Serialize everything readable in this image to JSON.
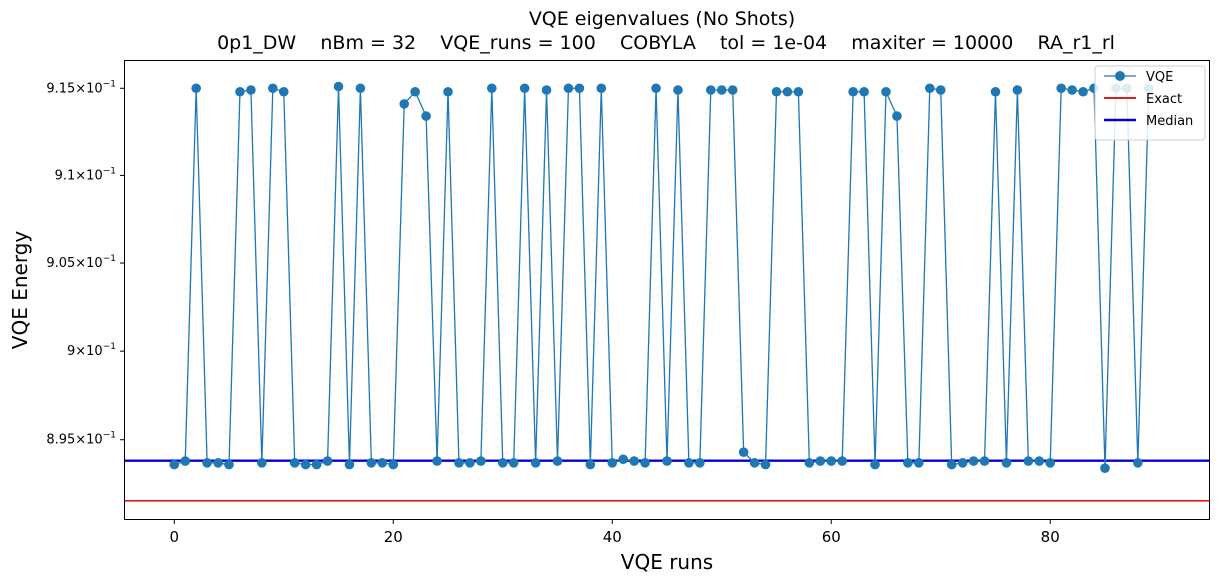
{
  "chart_data": {
    "type": "line",
    "title": "VQE eigenvalues (No Shots)",
    "subtitle": "0p1_DW    nBm = 32    VQE_runs = 100    COBYLA    tol = 1e-04    maxiter = 10000    RA_r1_rl",
    "xlabel": "VQE runs",
    "ylabel": "VQE Energy",
    "xlim": [
      -4.5,
      94.5
    ],
    "ylim": [
      0.89055,
      0.91657
    ],
    "y_scale": "log",
    "xticks": [
      0,
      20,
      40,
      60,
      80
    ],
    "xtick_labels": [
      "0",
      "20",
      "40",
      "60",
      "80"
    ],
    "yticks": [
      0.895,
      0.9,
      0.905,
      0.91,
      0.915
    ],
    "ytick_labels": [
      {
        "mant": "8.95",
        "exp": "−1"
      },
      {
        "mant": "9",
        "exp": "−1"
      },
      {
        "mant": "9.05",
        "exp": "−1"
      },
      {
        "mant": "9.1",
        "exp": "−1"
      },
      {
        "mant": "9.15",
        "exp": "−1"
      }
    ],
    "grid": false,
    "legend_position": "top-right",
    "series": [
      {
        "name": "VQE",
        "color": "#1f77b4",
        "marker": "circle",
        "x": [
          0,
          1,
          2,
          3,
          4,
          5,
          6,
          7,
          8,
          9,
          10,
          11,
          12,
          13,
          14,
          15,
          16,
          17,
          18,
          19,
          20,
          21,
          22,
          23,
          24,
          25,
          26,
          27,
          28,
          29,
          30,
          31,
          32,
          33,
          34,
          35,
          36,
          37,
          38,
          39,
          40,
          41,
          42,
          43,
          44,
          45,
          46,
          47,
          48,
          49,
          50,
          51,
          52,
          53,
          54,
          55,
          56,
          57,
          58,
          59,
          60,
          61,
          62,
          63,
          64,
          65,
          66,
          67,
          68,
          69,
          70,
          71,
          72,
          73,
          74,
          75,
          76,
          77,
          78,
          79,
          80,
          81,
          82,
          83,
          84,
          85,
          86,
          87,
          88,
          89
        ],
        "y": [
          0.8936,
          0.8938,
          0.915,
          0.8937,
          0.8937,
          0.8936,
          0.9148,
          0.9149,
          0.8937,
          0.915,
          0.9148,
          0.8937,
          0.8936,
          0.8936,
          0.8938,
          0.9151,
          0.8936,
          0.915,
          0.8937,
          0.8937,
          0.8936,
          0.9141,
          0.9148,
          0.9134,
          0.8938,
          0.9148,
          0.8937,
          0.8937,
          0.8938,
          0.915,
          0.8937,
          0.8937,
          0.915,
          0.8937,
          0.9149,
          0.8938,
          0.915,
          0.915,
          0.8936,
          0.915,
          0.8937,
          0.8939,
          0.8938,
          0.8937,
          0.915,
          0.8938,
          0.9149,
          0.8937,
          0.8937,
          0.9149,
          0.9149,
          0.9149,
          0.8943,
          0.8937,
          0.8936,
          0.9148,
          0.9148,
          0.9148,
          0.8937,
          0.8938,
          0.8938,
          0.8938,
          0.9148,
          0.9148,
          0.8936,
          0.9148,
          0.9134,
          0.8937,
          0.8937,
          0.915,
          0.9149,
          0.8936,
          0.8937,
          0.8938,
          0.8938,
          0.9148,
          0.8937,
          0.9149,
          0.8938,
          0.8938,
          0.8937,
          0.915,
          0.9149,
          0.9148,
          0.915,
          0.8934,
          0.915,
          0.915,
          0.8937,
          0.915
        ]
      },
      {
        "name": "Exact",
        "color": "#e31a1c",
        "y": 0.89157
      },
      {
        "name": "Median",
        "color": "#0000dd",
        "y": 0.89382
      }
    ]
  }
}
